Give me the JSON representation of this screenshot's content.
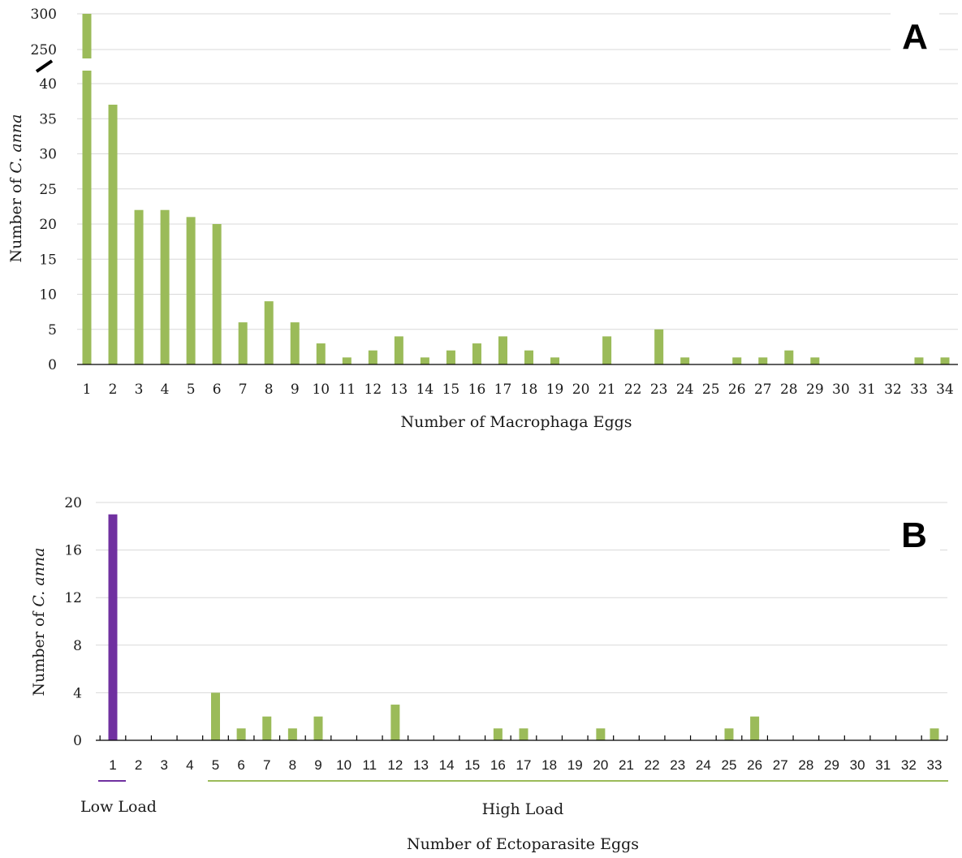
{
  "colors": {
    "bar_green": "#9bbb59",
    "bar_purple": "#7030a0",
    "grid": "#d9d9d9"
  },
  "chart_data": [
    {
      "panel": "A",
      "type": "bar",
      "xlabel": "Number of Macrophaga Eggs",
      "ylabel_prefix": "Number of ",
      "ylabel_italic": "C. anna",
      "axis_break": {
        "lower_range": [
          0,
          40
        ],
        "upper_ticks": [
          250,
          300
        ]
      },
      "yticks_lower": [
        0,
        5,
        10,
        15,
        20,
        25,
        30,
        35,
        40
      ],
      "yticks_upper": [
        250,
        300
      ],
      "categories": [
        "1",
        "2",
        "3",
        "4",
        "5",
        "6",
        "7",
        "8",
        "9",
        "10",
        "11",
        "12",
        "13",
        "14",
        "15",
        "16",
        "17",
        "18",
        "19",
        "20",
        "21",
        "22",
        "23",
        "24",
        "25",
        "26",
        "27",
        "28",
        "29",
        "30",
        "31",
        "32",
        "33",
        "34"
      ],
      "values": [
        300,
        37,
        22,
        22,
        21,
        20,
        6,
        9,
        6,
        3,
        1,
        2,
        4,
        1,
        2,
        3,
        4,
        2,
        1,
        0,
        4,
        0,
        5,
        1,
        0,
        1,
        1,
        2,
        1,
        0,
        0,
        0,
        1,
        1
      ],
      "grid": true,
      "bar_color": "#9bbb59"
    },
    {
      "panel": "B",
      "type": "bar",
      "xlabel": "Number of Ectoparasite Eggs",
      "ylabel_prefix": "Number of ",
      "ylabel_italic": "C. anna",
      "ylim": [
        0,
        20
      ],
      "yticks": [
        0,
        4,
        8,
        12,
        16,
        20
      ],
      "categories": [
        "1",
        "2",
        "3",
        "4",
        "5",
        "6",
        "7",
        "8",
        "9",
        "10",
        "11",
        "12",
        "13",
        "14",
        "15",
        "16",
        "17",
        "18",
        "19",
        "20",
        "21",
        "22",
        "23",
        "24",
        "25",
        "26",
        "27",
        "28",
        "29",
        "30",
        "31",
        "32",
        "33"
      ],
      "values": [
        19,
        0,
        0,
        0,
        4,
        1,
        2,
        1,
        2,
        0,
        0,
        3,
        0,
        0,
        0,
        1,
        1,
        0,
        0,
        1,
        0,
        0,
        0,
        0,
        1,
        2,
        0,
        0,
        0,
        0,
        0,
        0,
        1
      ],
      "bar_colors": {
        "low": "#7030a0",
        "high": "#9bbb59"
      },
      "groups": [
        {
          "label": "Low Load",
          "from": "1",
          "to": "1",
          "color": "#7030a0"
        },
        {
          "label": "High Load",
          "from": "5",
          "to": "33",
          "color": "#9bbb59"
        }
      ],
      "grid": true
    }
  ]
}
